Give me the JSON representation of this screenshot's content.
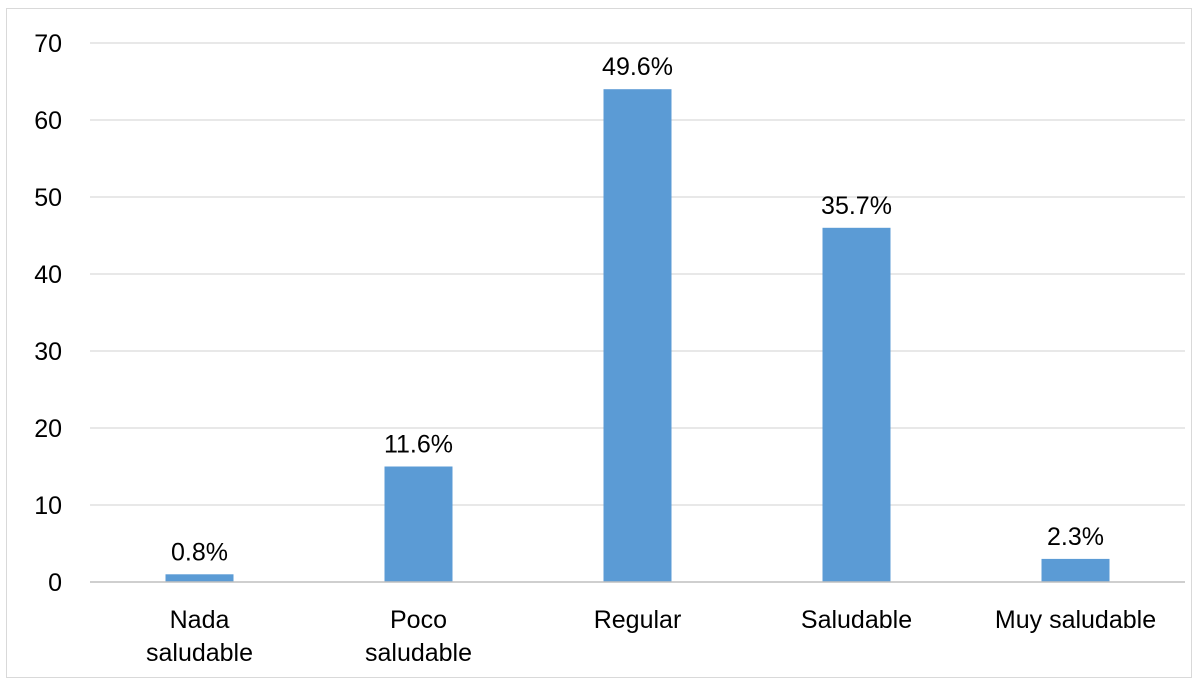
{
  "chart_data": {
    "type": "bar",
    "categories": [
      [
        "Nada",
        "saludable"
      ],
      [
        "Poco",
        "saludable"
      ],
      [
        "Regular"
      ],
      [
        "Saludable"
      ],
      [
        "Muy saludable"
      ]
    ],
    "values": [
      1,
      15,
      64,
      46,
      3
    ],
    "data_labels": [
      "0.8%",
      "11.6%",
      "49.6%",
      "35.7%",
      "2.3%"
    ],
    "ylim": [
      0,
      70
    ],
    "yticks": [
      0,
      10,
      20,
      30,
      40,
      50,
      60,
      70
    ],
    "grid": true,
    "legend": "none",
    "colors": {
      "bar": "#5b9bd5",
      "grid": "#d9d9d9",
      "axis": "#bfbfbf"
    }
  }
}
